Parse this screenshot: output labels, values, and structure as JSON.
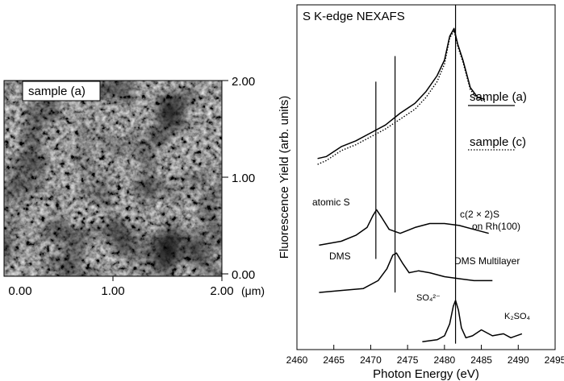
{
  "chart_data": [
    {
      "type": "heatmap",
      "kind": "afm-image",
      "legend_label": "sample (a)",
      "x_ticks": [
        "0.00",
        "1.00",
        "2.00"
      ],
      "x_unit": "(μm)",
      "y_ticks": [
        "0.00",
        "1.00",
        "2.00"
      ],
      "xlim": [
        0,
        2
      ],
      "ylim": [
        0,
        2
      ],
      "colormap": [
        "#1c1c1c",
        "#4a4a4a",
        "#9a9a9a",
        "#d6d6d6"
      ]
    },
    {
      "type": "line",
      "title": "S K-edge NEXAFS",
      "xlabel": "Photon Energy (eV)",
      "ylabel": "Fluorescence Yield (arb. units)",
      "xlim": [
        2460,
        2495
      ],
      "x_ticks": [
        "2460",
        "2465",
        "2470",
        "2475",
        "2480",
        "2485",
        "2490",
        "2495"
      ],
      "grid": false,
      "reference_lines_eV": [
        2470.7,
        2473.3,
        2481.5
      ],
      "series": [
        {
          "name": "sample (a)",
          "style": "solid",
          "offset": 0.86,
          "x": [
            2462.8,
            2464,
            2466,
            2468,
            2470,
            2472,
            2474,
            2476,
            2477.5,
            2479,
            2480,
            2480.7,
            2481.3,
            2481.8,
            2482.5,
            2483.5,
            2484.5,
            2485.5
          ],
          "y": [
            0.97,
            0.98,
            1.03,
            1.06,
            1.1,
            1.14,
            1.2,
            1.25,
            1.31,
            1.39,
            1.47,
            1.59,
            1.63,
            1.55,
            1.47,
            1.33,
            1.28,
            1.27
          ]
        },
        {
          "name": "sample (c)",
          "style": "dotted",
          "offset": 0.84,
          "x": [
            2462.8,
            2464,
            2466,
            2468,
            2470,
            2472,
            2474,
            2476,
            2477.5,
            2479,
            2480,
            2480.7,
            2481.3,
            2481.8,
            2482.5,
            2483.5,
            2484.5,
            2485.5
          ],
          "y": [
            0.94,
            0.96,
            1.01,
            1.04,
            1.08,
            1.12,
            1.17,
            1.22,
            1.28,
            1.36,
            1.45,
            1.58,
            1.62,
            1.54,
            1.46,
            1.32,
            1.27,
            1.26
          ]
        },
        {
          "name": "c(2×2)S on Rh(100)",
          "offset": 0.52,
          "x": [
            2463,
            2466,
            2468,
            2469.5,
            2470.3,
            2470.8,
            2471.5,
            2472.5,
            2474,
            2476,
            2478,
            2480,
            2482,
            2484,
            2486
          ],
          "y": [
            0.53,
            0.55,
            0.58,
            0.62,
            0.68,
            0.71,
            0.67,
            0.61,
            0.59,
            0.62,
            0.64,
            0.64,
            0.63,
            0.61,
            0.59
          ]
        },
        {
          "name": "DMS",
          "offset": 0.28,
          "x": [
            2463,
            2466,
            2469,
            2471,
            2472.2,
            2473.0,
            2473.5,
            2474.3,
            2475.2,
            2476.5,
            2478,
            2480,
            2482,
            2484,
            2486.5
          ],
          "y": [
            0.29,
            0.3,
            0.31,
            0.35,
            0.41,
            0.48,
            0.49,
            0.44,
            0.39,
            0.4,
            0.39,
            0.37,
            0.36,
            0.35,
            0.35
          ]
        },
        {
          "name": "K₂SO₄",
          "offset": 0.03,
          "x": [
            2477,
            2479,
            2480,
            2480.7,
            2481.2,
            2481.5,
            2481.9,
            2482.3,
            2482.9,
            2483.8,
            2485,
            2486.5,
            2488,
            2489,
            2490.5
          ],
          "y": [
            0.04,
            0.05,
            0.07,
            0.13,
            0.22,
            0.25,
            0.2,
            0.11,
            0.06,
            0.07,
            0.1,
            0.07,
            0.08,
            0.06,
            0.08
          ]
        }
      ],
      "annotations": {
        "sample_a": "sample (a)",
        "sample_c": "sample (c)",
        "atomic_s": "atomic S",
        "c2x2_line1": "c(2 × 2)S",
        "c2x2_line2": "on Rh(100)",
        "dms": "DMS",
        "dms_multilayer": "DMS Multilayer",
        "so4": "SO₄²⁻",
        "k2so4": "K₂SO₄"
      }
    }
  ]
}
